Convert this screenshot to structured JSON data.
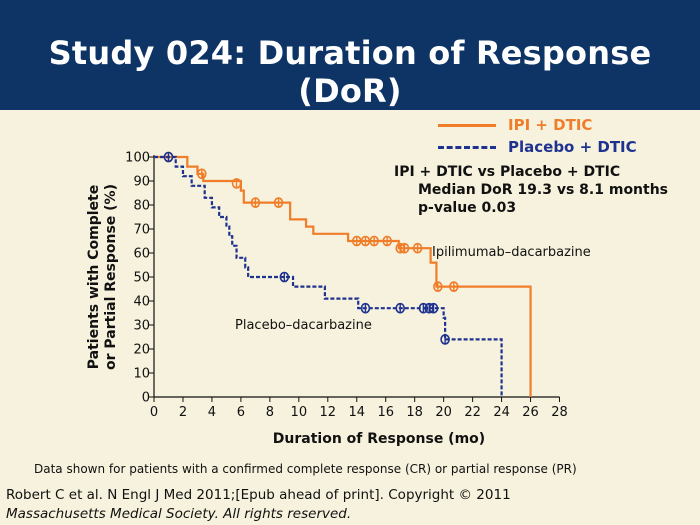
{
  "slide": {
    "title": "Study 024: Duration of Response (DoR)",
    "footnote": "Data shown for patients with a confirmed complete response (CR) or partial response (PR)",
    "citation_line1": "Robert C et al. N Engl J Med 2011;[Epub ahead of print]. Copyright © 2011",
    "citation_line2": "Massachusetts Medical Society. All rights reserved."
  },
  "annotation": {
    "line1": "IPI + DTIC vs Placebo + DTIC",
    "line2": "Median DoR 19.3 vs 8.1 months",
    "line3": "p-value 0.03"
  },
  "colors": {
    "ipi": "#f07d29",
    "placebo": "#1f3290",
    "header": "#0e3466",
    "background": "#f6f2dd"
  },
  "chart_data": {
    "type": "line",
    "title": "",
    "xlabel": "Duration of Response (mo)",
    "ylabel": "Patients with Complete or Partial Response (%)",
    "ylabel_lines": [
      "Patients with Complete",
      "or Partial Response (%)"
    ],
    "xlim": [
      0,
      29
    ],
    "ylim": [
      0,
      100
    ],
    "xticks": [
      0,
      2,
      4,
      6,
      8,
      10,
      12,
      14,
      16,
      18,
      20,
      22,
      24,
      26,
      28
    ],
    "yticks": [
      0,
      10,
      20,
      30,
      40,
      50,
      60,
      70,
      80,
      90,
      100
    ],
    "legend_placement": "top-right",
    "series": [
      {
        "name": "IPI + DTIC",
        "curve_label": "Ipilimumab–dacarbazine",
        "style": "solid",
        "steps": [
          [
            0,
            100
          ],
          [
            2,
            100
          ],
          [
            2.3,
            96
          ],
          [
            3,
            93
          ],
          [
            3.4,
            90
          ],
          [
            5.7,
            90
          ],
          [
            6,
            86
          ],
          [
            6.2,
            81
          ],
          [
            9,
            81
          ],
          [
            9.4,
            74
          ],
          [
            10.5,
            71
          ],
          [
            11,
            68
          ],
          [
            13,
            68
          ],
          [
            13.4,
            65
          ],
          [
            16.7,
            65
          ],
          [
            16.9,
            62
          ],
          [
            18.9,
            62
          ],
          [
            19.1,
            56
          ],
          [
            19.5,
            46
          ],
          [
            20.7,
            46
          ],
          [
            21,
            46
          ],
          [
            26,
            46
          ],
          [
            26,
            0
          ]
        ],
        "censored": [
          [
            1,
            100
          ],
          [
            3.3,
            93
          ],
          [
            5.7,
            89
          ],
          [
            7,
            81
          ],
          [
            8.6,
            81
          ],
          [
            14,
            65
          ],
          [
            14.6,
            65
          ],
          [
            15.2,
            65
          ],
          [
            16.1,
            65
          ],
          [
            17,
            62
          ],
          [
            17.3,
            62
          ],
          [
            18.2,
            62
          ],
          [
            19.6,
            46
          ],
          [
            20.7,
            46
          ]
        ]
      },
      {
        "name": "Placebo + DTIC",
        "curve_label": "Placebo–dacarbazine",
        "style": "dashed",
        "steps": [
          [
            0,
            100
          ],
          [
            1.3,
            100
          ],
          [
            1.5,
            96
          ],
          [
            2,
            92
          ],
          [
            2.6,
            88
          ],
          [
            3.5,
            83
          ],
          [
            4,
            79
          ],
          [
            4.5,
            75
          ],
          [
            5,
            71
          ],
          [
            5.2,
            67
          ],
          [
            5.4,
            63
          ],
          [
            5.7,
            58
          ],
          [
            6.3,
            54
          ],
          [
            6.5,
            50
          ],
          [
            9.4,
            50
          ],
          [
            9.6,
            46
          ],
          [
            11.6,
            46
          ],
          [
            11.8,
            41
          ],
          [
            13.9,
            41
          ],
          [
            14.1,
            37
          ],
          [
            19.8,
            37
          ],
          [
            20,
            33
          ],
          [
            20.1,
            24
          ],
          [
            24,
            24
          ],
          [
            24,
            0
          ]
        ],
        "censored": [
          [
            1,
            100
          ],
          [
            9,
            50
          ],
          [
            14.6,
            37
          ],
          [
            17,
            37
          ],
          [
            18.6,
            37
          ],
          [
            19,
            37
          ],
          [
            19.3,
            37
          ],
          [
            20.1,
            24
          ]
        ]
      }
    ]
  }
}
